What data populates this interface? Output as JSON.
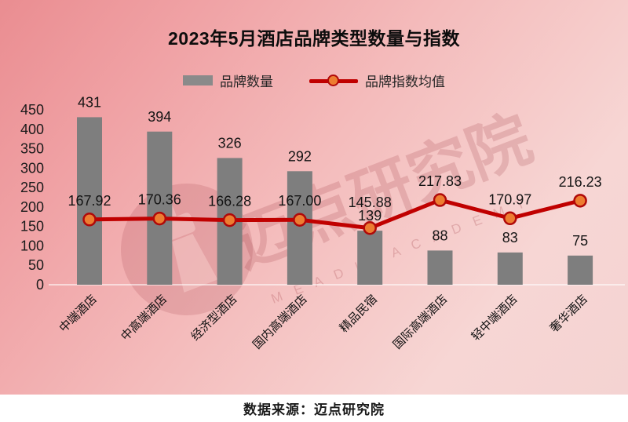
{
  "title": "2023年5月酒店品牌类型数量与指数",
  "legend": {
    "bars": "品牌数量",
    "line": "品牌指数均值"
  },
  "source": "数据来源：迈点研究院",
  "watermark": {
    "text": "迈点研究院",
    "subtext": "M E A D I N   A C A D E M Y"
  },
  "colors": {
    "bar": "#7e7e7e",
    "line": "#c00000",
    "marker_fill": "#ed7d31",
    "marker_stroke": "#b00909",
    "label_text": "#141414",
    "axis_text": "#1a1a1a",
    "baseline": "rgba(255,255,255,0.55)",
    "bg_gradient_from": "#ea8d91",
    "bg_gradient_to": "#f7d6d4",
    "watermark": "#8e1f2a"
  },
  "chart_data": {
    "type": "bar",
    "title": "2023年5月酒店品牌类型数量与指数",
    "categories": [
      "中端酒店",
      "中高端酒店",
      "经济型酒店",
      "国内高端酒店",
      "精品民宿",
      "国际高端酒店",
      "轻中端酒店",
      "奢华酒店"
    ],
    "series": [
      {
        "name": "品牌数量",
        "type": "bar",
        "values": [
          431,
          394,
          326,
          292,
          139,
          88,
          83,
          75
        ],
        "labels": [
          "431",
          "394",
          "326",
          "292",
          "139",
          "88",
          "83",
          "75"
        ]
      },
      {
        "name": "品牌指数均值",
        "type": "line",
        "values": [
          167.92,
          170.36,
          166.28,
          167.0,
          145.88,
          217.83,
          170.97,
          216.23
        ],
        "labels": [
          "167.92",
          "170.36",
          "166.28",
          "167.00",
          "145.88",
          "217.83",
          "170.97",
          "216.23"
        ]
      }
    ],
    "xlabel": "",
    "ylabel": "",
    "ylim": [
      0,
      450
    ],
    "ytick_step": 50,
    "yticks": [
      0,
      50,
      100,
      150,
      200,
      250,
      300,
      350,
      400,
      450
    ],
    "grid": false,
    "legend_position": "top",
    "x_tick_rotation": 45
  }
}
